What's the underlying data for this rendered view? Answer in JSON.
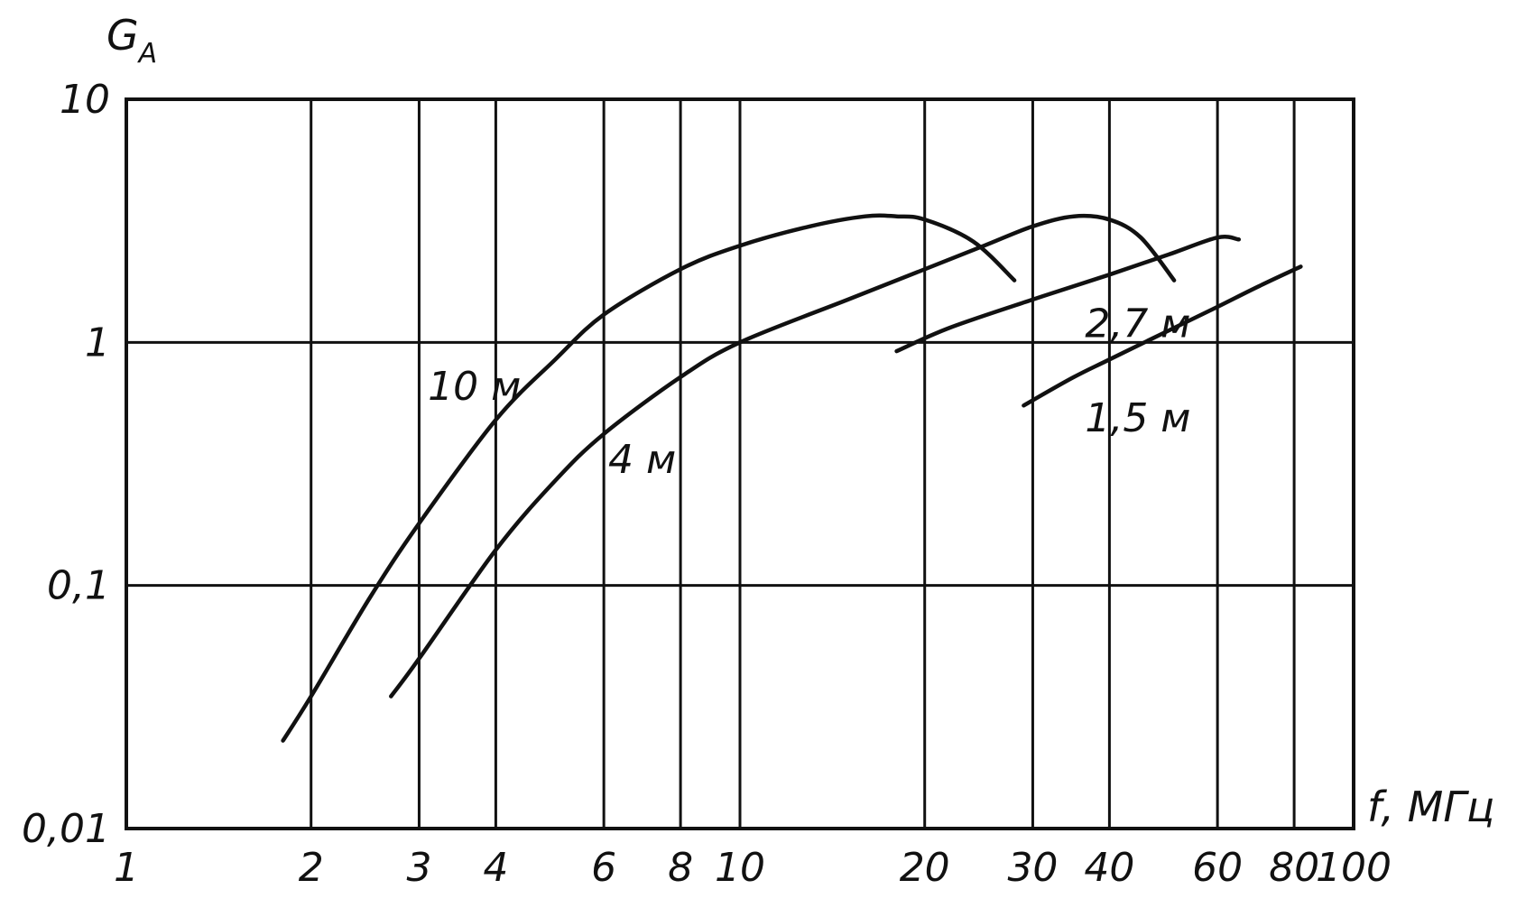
{
  "chart_data": {
    "type": "line",
    "xlabel": "f, МГц",
    "ylabel": "G_A",
    "x_scale": "log",
    "y_scale": "log",
    "xlim": [
      1,
      100
    ],
    "ylim": [
      0.01,
      10
    ],
    "x_ticks": [
      1,
      2,
      3,
      4,
      6,
      8,
      10,
      20,
      30,
      40,
      60,
      80,
      100
    ],
    "x_tick_labels": [
      "1",
      "2",
      "3",
      "4",
      "6",
      "8",
      "10",
      "20",
      "30",
      "40",
      "60",
      "80",
      "100"
    ],
    "y_ticks": [
      0.01,
      0.1,
      1,
      10
    ],
    "y_tick_labels": [
      "0,01",
      "0,1",
      "1",
      "10"
    ],
    "grid": true,
    "series": [
      {
        "name": "10 м",
        "label_pos": [
          3.1,
          0.58
        ],
        "points": [
          [
            1.8,
            0.023
          ],
          [
            2.0,
            0.035
          ],
          [
            2.5,
            0.09
          ],
          [
            3.0,
            0.18
          ],
          [
            4.0,
            0.48
          ],
          [
            5.0,
            0.85
          ],
          [
            6.0,
            1.3
          ],
          [
            8.0,
            2.0
          ],
          [
            10.0,
            2.5
          ],
          [
            13.0,
            3.0
          ],
          [
            16.0,
            3.3
          ],
          [
            18.0,
            3.3
          ],
          [
            20.0,
            3.2
          ],
          [
            24.0,
            2.6
          ],
          [
            28.0,
            1.8
          ]
        ]
      },
      {
        "name": "4 м",
        "label_pos": [
          6.1,
          0.29
        ],
        "points": [
          [
            2.7,
            0.035
          ],
          [
            3.0,
            0.05
          ],
          [
            4.0,
            0.14
          ],
          [
            5.0,
            0.27
          ],
          [
            6.0,
            0.42
          ],
          [
            8.0,
            0.72
          ],
          [
            10.0,
            1.0
          ],
          [
            15.0,
            1.5
          ],
          [
            20.0,
            2.0
          ],
          [
            25.0,
            2.5
          ],
          [
            30.0,
            3.0
          ],
          [
            35.0,
            3.3
          ],
          [
            40.0,
            3.2
          ],
          [
            45.0,
            2.7
          ],
          [
            51.0,
            1.8
          ]
        ]
      },
      {
        "name": "2,7 м",
        "label_pos": [
          36.5,
          1.05
        ],
        "points": [
          [
            18.0,
            0.92
          ],
          [
            22.0,
            1.15
          ],
          [
            30.0,
            1.5
          ],
          [
            40.0,
            1.9
          ],
          [
            50.0,
            2.3
          ],
          [
            60.0,
            2.7
          ],
          [
            65.0,
            2.65
          ]
        ]
      },
      {
        "name": "1,5 м",
        "label_pos": [
          36.5,
          0.43
        ],
        "points": [
          [
            29.0,
            0.55
          ],
          [
            35.0,
            0.72
          ],
          [
            40.0,
            0.85
          ],
          [
            50.0,
            1.12
          ],
          [
            60.0,
            1.4
          ],
          [
            70.0,
            1.7
          ],
          [
            82.0,
            2.05
          ]
        ]
      }
    ]
  }
}
